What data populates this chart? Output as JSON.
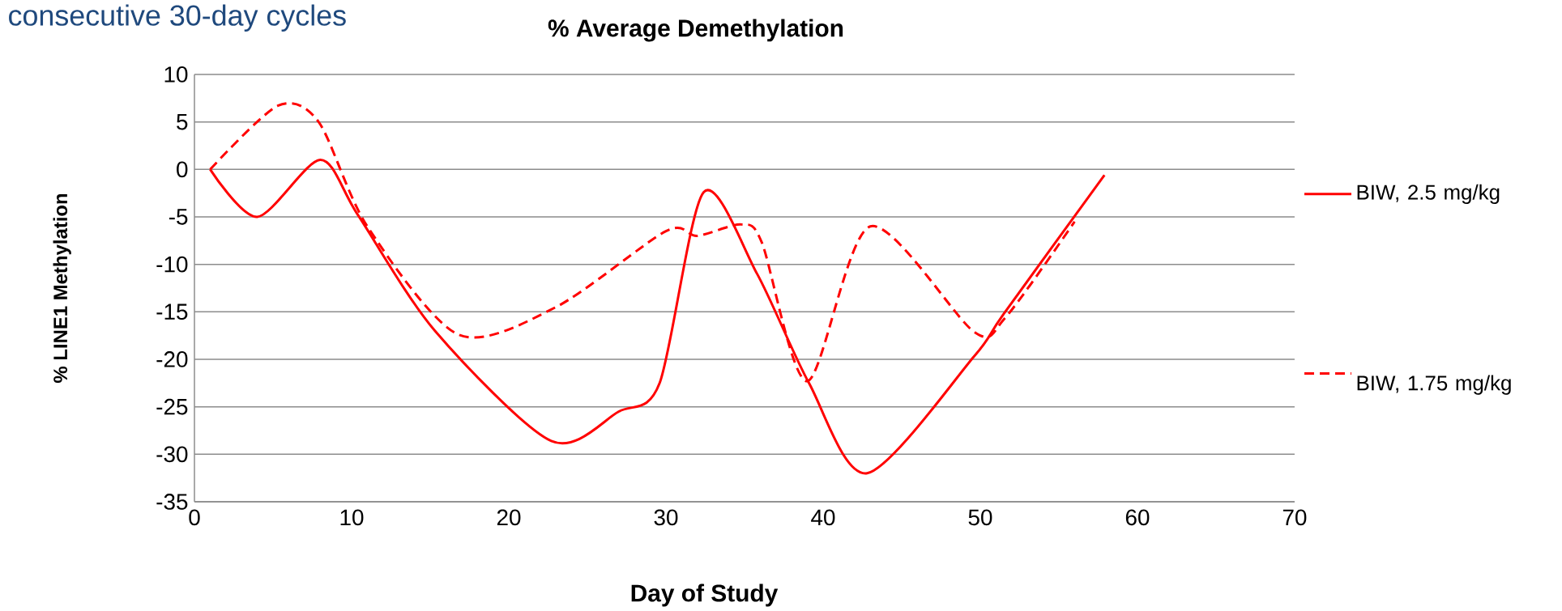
{
  "chart_data": {
    "type": "line",
    "title": "%  Average Demethylation",
    "xlabel": "Day of Study",
    "ylabel": "% LINE1 Methylation",
    "annotations": [
      "consecutive 30-day cycles"
    ],
    "series": [
      {
        "name": "BIW, 2.5 mg/kg",
        "color": "#ff0000",
        "line_style": "solid",
        "x": [
          1,
          4,
          8,
          10.4,
          15.3,
          22.7,
          27,
          29.6,
          32.4,
          35.8,
          39.1,
          42.8,
          49.6,
          51.5,
          57.9
        ],
        "values": [
          0,
          -5,
          1,
          -4.8,
          -17,
          -28.6,
          -25.5,
          -22.5,
          -2.4,
          -11,
          -22.5,
          -32,
          -19.7,
          -15.2,
          -0.6
        ]
      },
      {
        "name": "BIW, 1.75 mg/kg",
        "color": "#ff0000",
        "line_style": "dashed",
        "x": [
          1,
          5.3,
          7.9,
          11,
          16.8,
          23,
          30,
          32,
          34.8,
          36.1,
          39,
          43,
          49.6,
          51.6,
          56
        ],
        "values": [
          0,
          6.7,
          5,
          -6,
          -17.4,
          -14.5,
          -6.5,
          -7,
          -5.8,
          -7.7,
          -22.3,
          -6,
          -17.1,
          -15.6,
          -5.5
        ]
      }
    ],
    "xlim": [
      0,
      70
    ],
    "ylim": [
      -35,
      10
    ],
    "xticks": [
      0,
      10,
      20,
      30,
      40,
      50,
      60,
      70
    ],
    "yticks": [
      -35,
      -30,
      -25,
      -20,
      -15,
      -10,
      -5,
      0,
      5,
      10
    ],
    "grid": "y",
    "legend": "right",
    "marker": "none"
  }
}
